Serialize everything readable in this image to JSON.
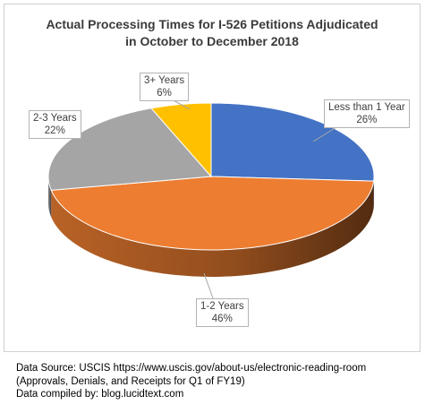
{
  "chart_data": {
    "type": "pie",
    "title_lines": [
      "Actual Processing Times for I-526 Petitions Adjudicated",
      "in October to December 2018"
    ],
    "slices": [
      {
        "label": "Less than 1 Year",
        "value": 26,
        "value_label": "26%",
        "color": "#4472C4"
      },
      {
        "label": "1-2 Years",
        "value": 46,
        "value_label": "46%",
        "color": "#ED7D31"
      },
      {
        "label": "2-3 Years",
        "value": 22,
        "value_label": "22%",
        "color": "#A5A5A5"
      },
      {
        "label": "3+ Years",
        "value": 6,
        "value_label": "6%",
        "color": "#FFC000"
      }
    ],
    "style": "3d-pie",
    "legend": "none"
  },
  "footer": {
    "source_line": "Data Source: USCIS  https://www.uscis.gov/about-us/electronic-reading-room (Approvals, Denials, and Receipts for Q1 of FY19)",
    "compiled_line": "Data compiled by: blog.lucidtext.com"
  }
}
